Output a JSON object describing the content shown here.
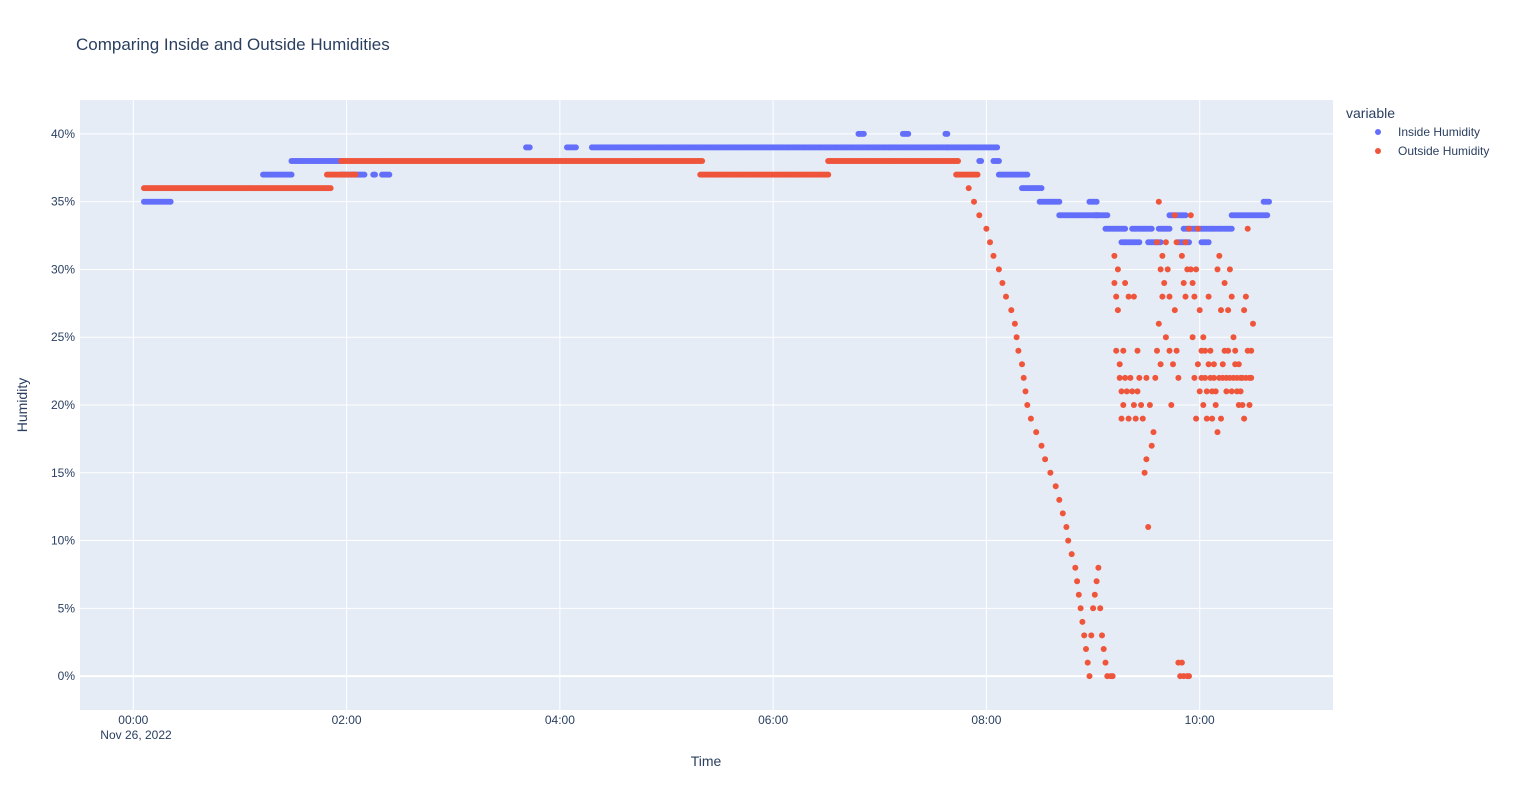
{
  "chart_data": {
    "type": "scatter",
    "title": "Comparing Inside and Outside Humidities",
    "xlabel": "Time",
    "ylabel": "Humidity",
    "x_date_label": "Nov 26, 2022",
    "x_ticks": [
      "00:00",
      "02:00",
      "04:00",
      "06:00",
      "08:00",
      "10:00"
    ],
    "y_ticks": [
      "0%",
      "5%",
      "10%",
      "15%",
      "20%",
      "25%",
      "30%",
      "35%",
      "40%"
    ],
    "x_range": [
      "2022-11-25 23:30",
      "2022-11-26 11:15"
    ],
    "y_range_percent": [
      -2.5,
      42.5
    ],
    "grid": true,
    "legend": {
      "title": "variable",
      "placement": "top-right",
      "entries": [
        "Inside Humidity",
        "Outside Humidity"
      ]
    },
    "colors": {
      "plot_background": "#E5ECF6",
      "grid": "#ffffff",
      "text": "#2a3f5f",
      "inside": "#636EFA",
      "outside": "#EF553B"
    },
    "series": [
      {
        "name": "Inside Humidity",
        "color": "#636EFA",
        "segments": [
          {
            "from": "00:06",
            "to": "00:21",
            "value": 35
          },
          {
            "from": "01:13",
            "to": "01:29",
            "value": 37
          },
          {
            "from": "01:29",
            "to": "01:57",
            "value": 38
          },
          {
            "from": "01:57",
            "to": "02:10",
            "value": 37
          },
          {
            "from": "02:15",
            "to": "02:16",
            "value": 37
          },
          {
            "from": "02:20",
            "to": "02:24",
            "value": 37
          },
          {
            "from": "03:41",
            "to": "03:43",
            "value": 39
          },
          {
            "from": "04:04",
            "to": "04:09",
            "value": 39
          },
          {
            "from": "04:18",
            "to": "06:50",
            "value": 39
          },
          {
            "from": "06:48",
            "to": "06:51",
            "value": 40
          },
          {
            "from": "06:51",
            "to": "07:15",
            "value": 39
          },
          {
            "from": "07:13",
            "to": "07:16",
            "value": 40
          },
          {
            "from": "07:16",
            "to": "07:38",
            "value": 39
          },
          {
            "from": "07:37",
            "to": "07:38",
            "value": 40
          },
          {
            "from": "07:38",
            "to": "08:06",
            "value": 39
          },
          {
            "from": "07:56",
            "to": "07:57",
            "value": 38
          },
          {
            "from": "08:04",
            "to": "08:07",
            "value": 38
          },
          {
            "from": "08:07",
            "to": "08:23",
            "value": 37
          },
          {
            "from": "08:20",
            "to": "08:31",
            "value": 36
          },
          {
            "from": "08:30",
            "to": "08:41",
            "value": 35
          },
          {
            "from": "08:41",
            "to": "09:03",
            "value": 34
          },
          {
            "from": "08:58",
            "to": "09:02",
            "value": 35
          },
          {
            "from": "09:01",
            "to": "09:08",
            "value": 34
          },
          {
            "from": "09:07",
            "to": "09:18",
            "value": 33
          },
          {
            "from": "09:16",
            "to": "09:26",
            "value": 32
          },
          {
            "from": "09:22",
            "to": "09:33",
            "value": 33
          },
          {
            "from": "09:31",
            "to": "09:38",
            "value": 32
          },
          {
            "from": "09:37",
            "to": "09:43",
            "value": 33
          },
          {
            "from": "09:43",
            "to": "09:52",
            "value": 34
          },
          {
            "from": "09:51",
            "to": "10:04",
            "value": 33
          },
          {
            "from": "09:48",
            "to": "09:54",
            "value": 32
          },
          {
            "from": "10:01",
            "to": "10:05",
            "value": 32
          },
          {
            "from": "10:05",
            "to": "10:18",
            "value": 33
          },
          {
            "from": "10:18",
            "to": "10:38",
            "value": 34
          },
          {
            "from": "10:36",
            "to": "10:39",
            "value": 35
          }
        ]
      },
      {
        "name": "Outside Humidity",
        "color": "#EF553B",
        "segments": [
          {
            "from": "00:06",
            "to": "01:51",
            "value": 36
          },
          {
            "from": "01:49",
            "to": "02:01",
            "value": 37
          },
          {
            "from": "01:57",
            "to": "05:20",
            "value": 38
          },
          {
            "from": "02:03",
            "to": "02:05",
            "value": 37
          },
          {
            "from": "05:19",
            "to": "06:31",
            "value": 37
          },
          {
            "from": "06:31",
            "to": "07:44",
            "value": 38
          },
          {
            "from": "07:43",
            "to": "07:55",
            "value": 37
          }
        ],
        "points": [
          [
            "07:50",
            36
          ],
          [
            "07:53",
            35
          ],
          [
            "07:56",
            34
          ],
          [
            "08:00",
            33
          ],
          [
            "08:02",
            32
          ],
          [
            "08:04",
            31
          ],
          [
            "08:07",
            30
          ],
          [
            "08:09",
            29
          ],
          [
            "08:11",
            28
          ],
          [
            "08:14",
            27
          ],
          [
            "08:16",
            26
          ],
          [
            "08:17",
            25
          ],
          [
            "08:18",
            24
          ],
          [
            "08:20",
            23
          ],
          [
            "08:21",
            22
          ],
          [
            "08:22",
            21
          ],
          [
            "08:23",
            20
          ],
          [
            "08:25",
            19
          ],
          [
            "08:28",
            18
          ],
          [
            "08:31",
            17
          ],
          [
            "08:33",
            16
          ],
          [
            "08:36",
            15
          ],
          [
            "08:39",
            14
          ],
          [
            "08:41",
            13
          ],
          [
            "08:43",
            12
          ],
          [
            "08:45",
            11
          ],
          [
            "08:46",
            10
          ],
          [
            "08:48",
            9
          ],
          [
            "08:50",
            8
          ],
          [
            "08:51",
            7
          ],
          [
            "08:52",
            6
          ],
          [
            "08:53",
            5
          ],
          [
            "08:54",
            4
          ],
          [
            "08:55",
            3
          ],
          [
            "08:56",
            2
          ],
          [
            "08:57",
            1
          ],
          [
            "08:58",
            0
          ],
          [
            "08:59",
            3
          ],
          [
            "09:00",
            5
          ],
          [
            "09:01",
            6
          ],
          [
            "09:02",
            7
          ],
          [
            "09:03",
            8
          ],
          [
            "09:04",
            5
          ],
          [
            "09:05",
            3
          ],
          [
            "09:06",
            2
          ],
          [
            "09:07",
            1
          ],
          [
            "09:08",
            0
          ],
          [
            "09:10",
            0
          ],
          [
            "09:11",
            0
          ],
          [
            "09:12",
            31
          ],
          [
            "09:12",
            29
          ],
          [
            "09:13",
            28
          ],
          [
            "09:13",
            24
          ],
          [
            "09:14",
            30
          ],
          [
            "09:14",
            27
          ],
          [
            "09:15",
            23
          ],
          [
            "09:15",
            22
          ],
          [
            "09:16",
            21
          ],
          [
            "09:16",
            19
          ],
          [
            "09:17",
            24
          ],
          [
            "09:17",
            20
          ],
          [
            "09:18",
            29
          ],
          [
            "09:18",
            22
          ],
          [
            "09:19",
            21
          ],
          [
            "09:20",
            28
          ],
          [
            "09:20",
            19
          ],
          [
            "09:21",
            22
          ],
          [
            "09:22",
            21
          ],
          [
            "09:23",
            20
          ],
          [
            "09:23",
            28
          ],
          [
            "09:24",
            19
          ],
          [
            "09:25",
            24
          ],
          [
            "09:25",
            21
          ],
          [
            "09:26",
            22
          ],
          [
            "09:27",
            20
          ],
          [
            "09:28",
            19
          ],
          [
            "09:29",
            15
          ],
          [
            "09:30",
            16
          ],
          [
            "09:30",
            22
          ],
          [
            "09:31",
            11
          ],
          [
            "09:32",
            20
          ],
          [
            "09:33",
            17
          ],
          [
            "09:34",
            18
          ],
          [
            "09:35",
            22
          ],
          [
            "09:36",
            24
          ],
          [
            "09:36",
            32
          ],
          [
            "09:37",
            35
          ],
          [
            "09:37",
            26
          ],
          [
            "09:38",
            30
          ],
          [
            "09:38",
            23
          ],
          [
            "09:39",
            31
          ],
          [
            "09:39",
            28
          ],
          [
            "09:40",
            29
          ],
          [
            "09:41",
            25
          ],
          [
            "09:41",
            32
          ],
          [
            "09:42",
            30
          ],
          [
            "09:43",
            28
          ],
          [
            "09:43",
            24
          ],
          [
            "09:44",
            20
          ],
          [
            "09:45",
            23
          ],
          [
            "09:46",
            34
          ],
          [
            "09:46",
            27
          ],
          [
            "09:47",
            32
          ],
          [
            "09:47",
            24
          ],
          [
            "09:48",
            22
          ],
          [
            "09:48",
            1
          ],
          [
            "09:49",
            0
          ],
          [
            "09:50",
            1
          ],
          [
            "09:50",
            31
          ],
          [
            "09:51",
            29
          ],
          [
            "09:51",
            0
          ],
          [
            "09:52",
            32
          ],
          [
            "09:52",
            28
          ],
          [
            "09:53",
            0
          ],
          [
            "09:53",
            30
          ],
          [
            "09:54",
            33
          ],
          [
            "09:54",
            0
          ],
          [
            "09:55",
            34
          ],
          [
            "09:55",
            30
          ],
          [
            "09:56",
            29
          ],
          [
            "09:56",
            25
          ],
          [
            "09:57",
            22
          ],
          [
            "09:57",
            28
          ],
          [
            "09:58",
            30
          ],
          [
            "09:58",
            19
          ],
          [
            "09:59",
            33
          ],
          [
            "09:59",
            23
          ],
          [
            "10:00",
            27
          ],
          [
            "10:00",
            21
          ],
          [
            "10:01",
            24
          ],
          [
            "10:01",
            22
          ],
          [
            "10:02",
            25
          ],
          [
            "10:02",
            20
          ],
          [
            "10:03",
            22
          ],
          [
            "10:03",
            24
          ],
          [
            "10:04",
            21
          ],
          [
            "10:04",
            19
          ],
          [
            "10:05",
            28
          ],
          [
            "10:05",
            23
          ],
          [
            "10:06",
            22
          ],
          [
            "10:06",
            24
          ],
          [
            "10:07",
            21
          ],
          [
            "10:07",
            19
          ],
          [
            "10:08",
            22
          ],
          [
            "10:08",
            23
          ],
          [
            "10:09",
            20
          ],
          [
            "10:09",
            21
          ],
          [
            "10:10",
            30
          ],
          [
            "10:10",
            18
          ],
          [
            "10:11",
            22
          ],
          [
            "10:11",
            31
          ],
          [
            "10:12",
            27
          ],
          [
            "10:12",
            19
          ],
          [
            "10:13",
            23
          ],
          [
            "10:13",
            22
          ],
          [
            "10:14",
            24
          ],
          [
            "10:14",
            29
          ],
          [
            "10:15",
            21
          ],
          [
            "10:15",
            22
          ],
          [
            "10:16",
            27
          ],
          [
            "10:16",
            24
          ],
          [
            "10:17",
            30
          ],
          [
            "10:17",
            22
          ],
          [
            "10:18",
            28
          ],
          [
            "10:18",
            21
          ],
          [
            "10:19",
            25
          ],
          [
            "10:19",
            22
          ],
          [
            "10:20",
            24
          ],
          [
            "10:20",
            23
          ],
          [
            "10:21",
            22
          ],
          [
            "10:21",
            21
          ],
          [
            "10:22",
            23
          ],
          [
            "10:22",
            20
          ],
          [
            "10:23",
            22
          ],
          [
            "10:23",
            21
          ],
          [
            "10:24",
            22
          ],
          [
            "10:24",
            20
          ],
          [
            "10:25",
            27
          ],
          [
            "10:25",
            19
          ],
          [
            "10:26",
            28
          ],
          [
            "10:26",
            22
          ],
          [
            "10:27",
            33
          ],
          [
            "10:27",
            24
          ],
          [
            "10:28",
            22
          ],
          [
            "10:28",
            20
          ],
          [
            "10:29",
            24
          ],
          [
            "10:29",
            22
          ],
          [
            "10:30",
            26
          ]
        ]
      }
    ]
  }
}
